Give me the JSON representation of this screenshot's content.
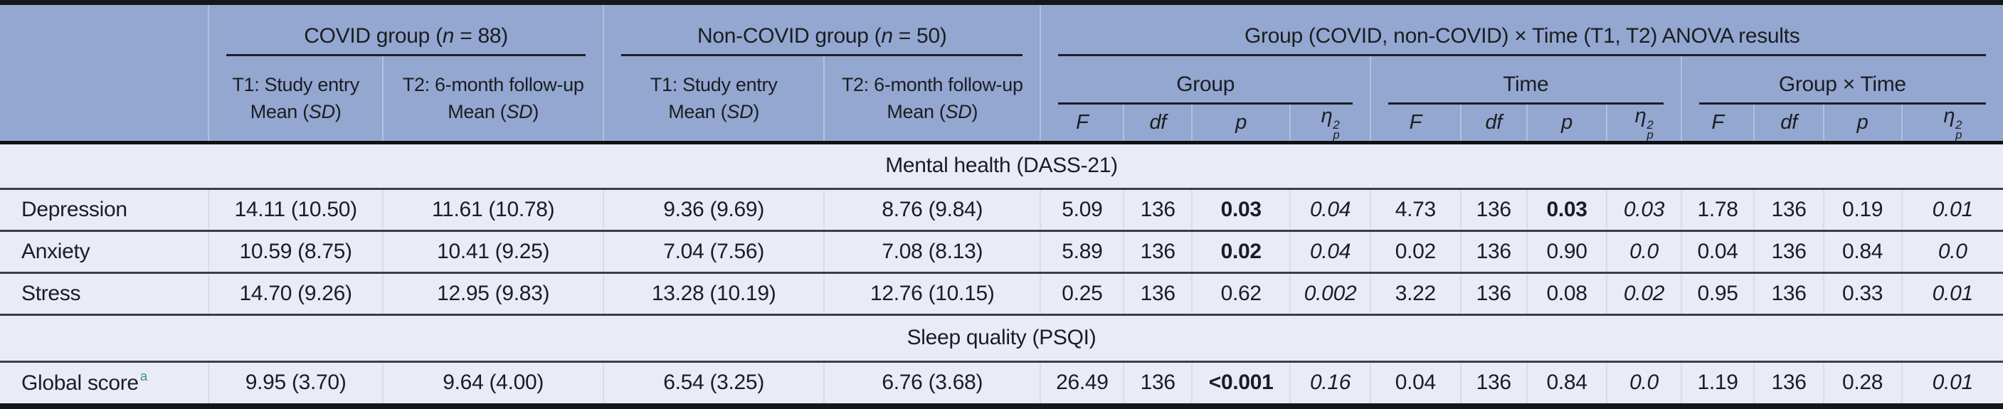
{
  "header": {
    "covid": {
      "pre": "COVID group (",
      "n": "n",
      "post": " = 88)"
    },
    "noncovid": {
      "pre": "Non-COVID group (",
      "n": "n",
      "post": " = 50)"
    },
    "anova": "Group (COVID, non-COVID) × Time (T1, T2) ANOVA results",
    "t1_line1": "T1: Study entry",
    "t2_line1": "T2: 6-month follow-up",
    "mean_pre": "Mean (",
    "mean_sd": "SD",
    "mean_post": ")",
    "effect_group": "Group",
    "effect_time": "Time",
    "effect_interaction": "Group × Time",
    "stat_f": "F",
    "stat_df": "df",
    "stat_p": "p",
    "stat_eta_base": "η",
    "stat_eta_sub": "p",
    "stat_eta_sup": "2"
  },
  "body": [
    {
      "type": "section",
      "label": "Mental health (DASS-21)"
    },
    {
      "type": "data",
      "label": "Depression",
      "sup": "",
      "means": [
        "14.11 (10.50)",
        "11.61 (10.78)",
        "9.36 (9.69)",
        "8.76 (9.84)"
      ],
      "effects": [
        {
          "F": "5.09",
          "df": "136",
          "p": "0.03",
          "p_bold": true,
          "eta": "0.04"
        },
        {
          "F": "4.73",
          "df": "136",
          "p": "0.03",
          "p_bold": true,
          "eta": "0.03"
        },
        {
          "F": "1.78",
          "df": "136",
          "p": "0.19",
          "p_bold": false,
          "eta": "0.01"
        }
      ]
    },
    {
      "type": "data",
      "label": "Anxiety",
      "sup": "",
      "means": [
        "10.59 (8.75)",
        "10.41 (9.25)",
        "7.04 (7.56)",
        "7.08 (8.13)"
      ],
      "effects": [
        {
          "F": "5.89",
          "df": "136",
          "p": "0.02",
          "p_bold": true,
          "eta": "0.04"
        },
        {
          "F": "0.02",
          "df": "136",
          "p": "0.90",
          "p_bold": false,
          "eta": "0.0"
        },
        {
          "F": "0.04",
          "df": "136",
          "p": "0.84",
          "p_bold": false,
          "eta": "0.0"
        }
      ]
    },
    {
      "type": "data",
      "label": "Stress",
      "sup": "",
      "means": [
        "14.70 (9.26)",
        "12.95 (9.83)",
        "13.28 (10.19)",
        "12.76 (10.15)"
      ],
      "effects": [
        {
          "F": "0.25",
          "df": "136",
          "p": "0.62",
          "p_bold": false,
          "eta": "0.002"
        },
        {
          "F": "3.22",
          "df": "136",
          "p": "0.08",
          "p_bold": false,
          "eta": "0.02"
        },
        {
          "F": "0.95",
          "df": "136",
          "p": "0.33",
          "p_bold": false,
          "eta": "0.01"
        }
      ]
    },
    {
      "type": "section",
      "label": "Sleep quality (PSQI)"
    },
    {
      "type": "data",
      "label": "Global score",
      "sup": "a",
      "means": [
        "9.95 (3.70)",
        "9.64 (4.00)",
        "6.54 (3.25)",
        "6.76 (3.68)"
      ],
      "effects": [
        {
          "F": "26.49",
          "df": "136",
          "p": "<0.001",
          "p_bold": true,
          "eta": "0.16"
        },
        {
          "F": "0.04",
          "df": "136",
          "p": "0.84",
          "p_bold": false,
          "eta": "0.0"
        },
        {
          "F": "1.19",
          "df": "136",
          "p": "0.28",
          "p_bold": false,
          "eta": "0.01"
        }
      ]
    }
  ],
  "colors": {
    "header_bg": "#93a7d0",
    "body_bg": "#e9ecf7",
    "rule": "#1c1f26",
    "footnote_marker": "#3f8e87"
  }
}
